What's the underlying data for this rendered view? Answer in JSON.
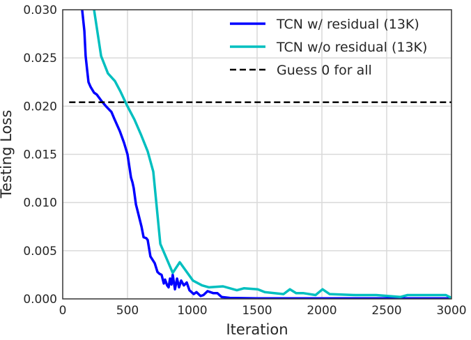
{
  "chart_data": {
    "type": "line",
    "title": "",
    "xlabel": "Iteration",
    "ylabel": "Testing Loss",
    "xlim": [
      0,
      3000
    ],
    "ylim": [
      0,
      0.03
    ],
    "xticks": [
      "0",
      "500",
      "1000",
      "1500",
      "2000",
      "2500",
      "3000"
    ],
    "xtick_values": [
      0,
      500,
      1000,
      1500,
      2000,
      2500,
      3000
    ],
    "yticks": [
      "0.000",
      "0.005",
      "0.010",
      "0.015",
      "0.020",
      "0.025",
      "0.030"
    ],
    "ytick_values": [
      0,
      0.005,
      0.01,
      0.015,
      0.02,
      0.025,
      0.03
    ],
    "grid": true,
    "legend_position": "top-right",
    "series": [
      {
        "name": "TCN w/ residual (13K)",
        "color": "#0000ff",
        "style": "solid",
        "x": [
          150,
          167,
          177,
          188,
          199,
          215,
          242,
          263,
          301,
          333,
          376,
          398,
          441,
          473,
          500,
          527,
          538,
          548,
          565,
          575,
          608,
          624,
          645,
          656,
          677,
          710,
          731,
          747,
          763,
          780,
          790,
          806,
          817,
          828,
          839,
          849,
          866,
          882,
          898,
          914,
          935,
          957,
          978,
          1011,
          1032,
          1064,
          1086,
          1118,
          1161,
          1193,
          1226,
          1290,
          1500,
          2000,
          2500,
          3000
        ],
        "y": [
          0.03,
          0.0278,
          0.0252,
          0.0238,
          0.0225,
          0.022,
          0.0214,
          0.0212,
          0.0205,
          0.02,
          0.0194,
          0.0187,
          0.0174,
          0.0162,
          0.015,
          0.0126,
          0.0121,
          0.0115,
          0.0098,
          0.0093,
          0.0075,
          0.0064,
          0.0063,
          0.0061,
          0.0044,
          0.0037,
          0.0028,
          0.0026,
          0.0025,
          0.0016,
          0.002,
          0.0014,
          0.0012,
          0.0021,
          0.0015,
          0.0025,
          0.001,
          0.0021,
          0.0012,
          0.0019,
          0.0014,
          0.0017,
          0.0009,
          0.0005,
          0.0007,
          0.0003,
          0.0004,
          0.0008,
          0.0006,
          0.0006,
          0.0002,
          0.0001,
          5e-05,
          5e-05,
          5e-05,
          5e-05
        ]
      },
      {
        "name": "TCN w/o residual (13K)",
        "color": "#00bfbf",
        "style": "solid",
        "x": [
          242,
          296,
          349,
          403,
          446,
          495,
          554,
          602,
          656,
          699,
          753,
          849,
          903,
          1005,
          1075,
          1129,
          1237,
          1344,
          1398,
          1505,
          1559,
          1704,
          1753,
          1801,
          1855,
          1951,
          2005,
          2059,
          2258,
          2419,
          2607,
          2661,
          2957,
          3000
        ],
        "y": [
          0.03,
          0.0252,
          0.0234,
          0.0226,
          0.0215,
          0.0201,
          0.0186,
          0.0171,
          0.0153,
          0.0132,
          0.0057,
          0.0027,
          0.0038,
          0.0019,
          0.0014,
          0.0012,
          0.0013,
          0.0009,
          0.0011,
          0.001,
          0.0007,
          0.0005,
          0.001,
          0.0006,
          0.0006,
          0.0004,
          0.001,
          0.0005,
          0.0004,
          0.0004,
          0.0002,
          0.0004,
          0.0004,
          0.0001
        ]
      },
      {
        "name": "Guess 0 for all",
        "color": "#000000",
        "style": "dashed",
        "x": [
          50,
          3000
        ],
        "y": [
          0.0204,
          0.0204
        ]
      }
    ]
  }
}
